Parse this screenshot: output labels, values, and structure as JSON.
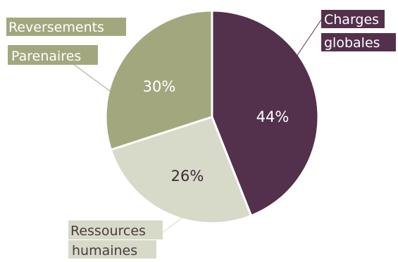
{
  "chart_data": {
    "type": "pie",
    "slices": [
      {
        "label_lines": [
          "Charges",
          "globales"
        ],
        "value": 44,
        "value_label": "44%",
        "color": "#53304b",
        "text_color": "#ffffff",
        "label_bg": "#53304b",
        "label_fg": "#ffffff"
      },
      {
        "label_lines": [
          "Ressources",
          "humaines"
        ],
        "value": 26,
        "value_label": "26%",
        "color": "#d7dac8",
        "text_color": "#3d2a37",
        "label_bg": "#d7dac8",
        "label_fg": "#4a3b44"
      },
      {
        "label_lines": [
          "Reversements",
          "Parenaires"
        ],
        "value": 30,
        "value_label": "30%",
        "color": "#a3a77e",
        "text_color": "#ffffff",
        "label_bg": "#a3a77e",
        "label_fg": "#ffffff"
      }
    ],
    "legend": "none"
  }
}
